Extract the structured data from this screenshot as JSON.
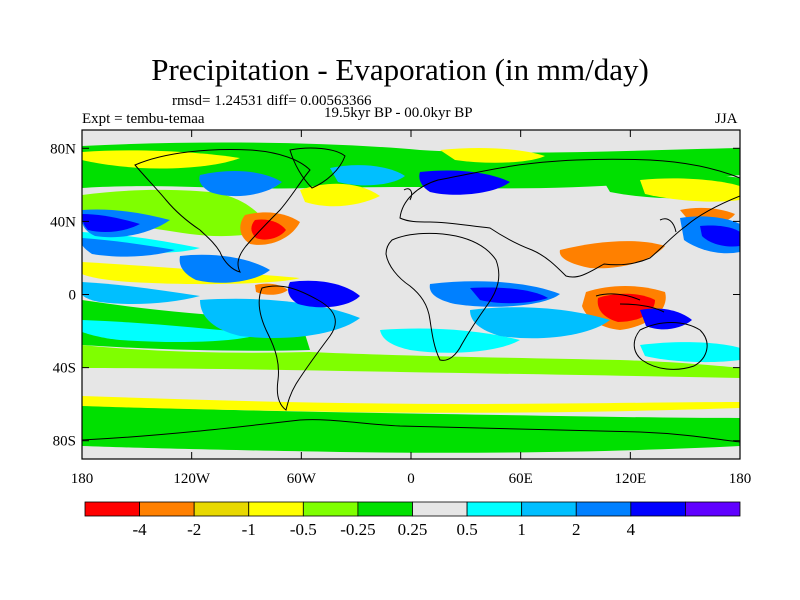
{
  "title": "Precipitation - Evaporation (in mm/day)",
  "stats": "rmsd= 1.24531 diff= 0.00563366",
  "expt": "Expt = tembu-temaa",
  "period": "19.5kyr BP - 00.0kyr BP",
  "season": "JJA",
  "map": {
    "lon_ticks": [
      {
        "lon": -180,
        "label": "180"
      },
      {
        "lon": -120,
        "label": "120W"
      },
      {
        "lon": -60,
        "label": "60W"
      },
      {
        "lon": 0,
        "label": "0"
      },
      {
        "lon": 60,
        "label": "60E"
      },
      {
        "lon": 120,
        "label": "120E"
      },
      {
        "lon": 180,
        "label": "180"
      }
    ],
    "lat_ticks": [
      {
        "lat": 80,
        "label": "80N"
      },
      {
        "lat": 40,
        "label": "40N"
      },
      {
        "lat": 0,
        "label": "0"
      },
      {
        "lat": -40,
        "label": "40S"
      },
      {
        "lat": -80,
        "label": "80S"
      }
    ],
    "lon_range": [
      -180,
      180
    ],
    "lat_range": [
      -90,
      90
    ]
  },
  "colorbar": {
    "colors": [
      "#ff0000",
      "#ff8000",
      "#e8d800",
      "#ffff00",
      "#7fff00",
      "#00e000",
      "#e6e6e6",
      "#00ffff",
      "#00bfff",
      "#0080ff",
      "#0000ff",
      "#6000ff"
    ],
    "labels": [
      "-4",
      "-2",
      "-1",
      "-0.5",
      "-0.25",
      "0.25",
      "0.5",
      "1",
      "2",
      "4"
    ]
  }
}
